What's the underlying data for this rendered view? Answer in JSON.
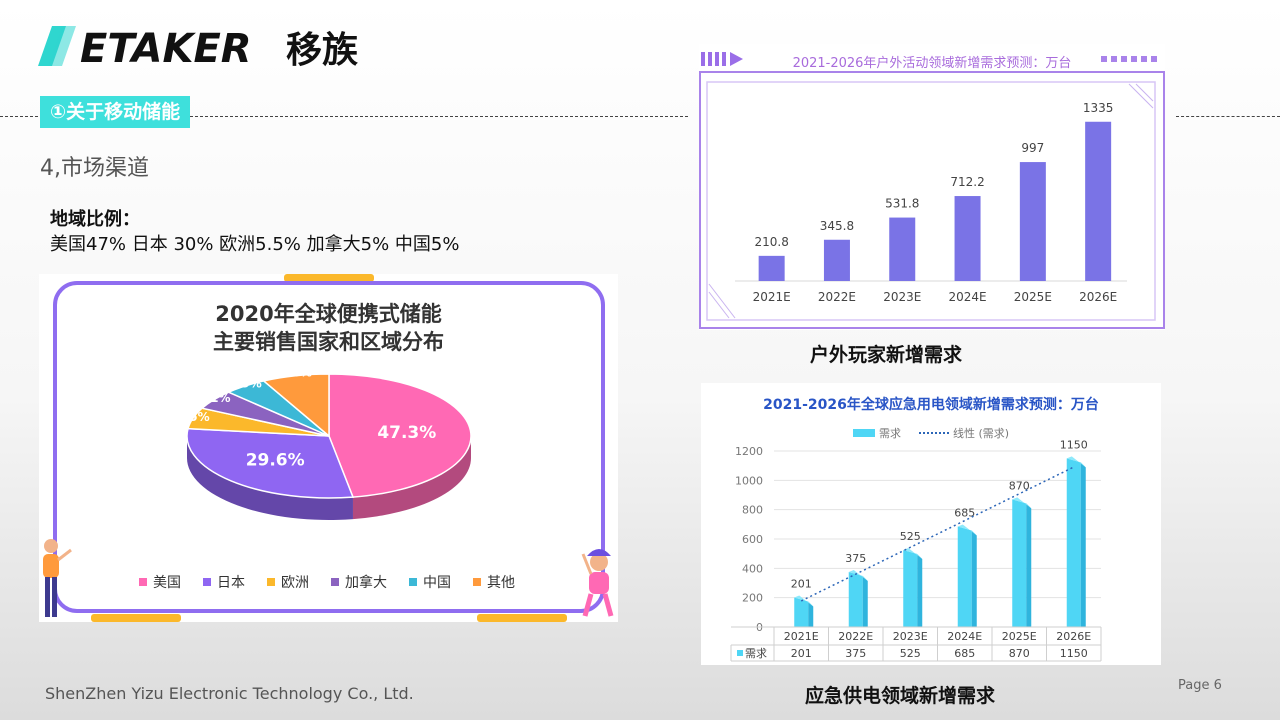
{
  "brand": {
    "name": "ETAKER",
    "cn_name": "移族",
    "color": "#111111",
    "accent": "#3ee0dc"
  },
  "section": {
    "tag": "①关于移动储能",
    "heading": "4,市场渠道"
  },
  "region": {
    "title": "地域比例：",
    "values": "美国47% 日本 30% 欧洲5.5% 加拿大5% 中国5%"
  },
  "pie_chart": {
    "title_line1": "2020年全球便携式储能",
    "title_line2": "主要销售国家和区域分布",
    "card_border_color": "#8f6df0"
  },
  "outdoor_chart": {
    "title": "2021-2026年户外活动领域新增需求预测：万台",
    "caption": "户外玩家新增需求",
    "bar_color": "#7a73e6"
  },
  "emergency_chart": {
    "title": "2021-2026年全球应急用电领域新增需求预测：万台",
    "legend_bar": "需求",
    "legend_line": "线性 (需求)",
    "table_row_label": "需求",
    "caption": "应急供电领域新增需求",
    "bar_color": "#4fd6f5"
  },
  "footer": {
    "company": "ShenZhen Yizu Electronic Technology Co., Ltd.",
    "page": "Page  6"
  },
  "chart_data": [
    {
      "type": "pie",
      "title": "2020年全球便携式储能 主要销售国家和区域分布",
      "labels": [
        "美国",
        "日本",
        "欧洲",
        "加拿大",
        "中国",
        "其他"
      ],
      "values": [
        47.3,
        29.6,
        5.5,
        5.1,
        4.9,
        7.6
      ],
      "value_labels": [
        "47.3%",
        "29.6%",
        "5.5%",
        "5.1%",
        "4.9%",
        "7.6%"
      ],
      "colors": [
        "#ff69b4",
        "#8f66f2",
        "#fbb82b",
        "#8b63c0",
        "#3cb8d6",
        "#ff9a3c"
      ],
      "legend": "bottom"
    },
    {
      "type": "bar",
      "title": "2021-2026年户外活动领域新增需求预测：万台",
      "categories": [
        "2021E",
        "2022E",
        "2023E",
        "2024E",
        "2025E",
        "2026E"
      ],
      "values": [
        210.8,
        345.8,
        531.8,
        712.2,
        997,
        1335
      ],
      "value_labels": [
        "210.8",
        "345.8",
        "531.8",
        "712.2",
        "997",
        "1335"
      ],
      "ylim": [
        0,
        1400
      ],
      "grid": false
    },
    {
      "type": "bar",
      "title": "2021-2026年全球应急用电领域新增需求预测：万台",
      "categories": [
        "2021E",
        "2022E",
        "2023E",
        "2024E",
        "2025E",
        "2026E"
      ],
      "series": [
        {
          "name": "需求",
          "values": [
            201,
            375,
            525,
            685,
            870,
            1150
          ]
        }
      ],
      "value_labels": [
        "201",
        "375",
        "525",
        "685",
        "870",
        "1150"
      ],
      "trendline": "线性 (需求)",
      "yticks": [
        "0",
        "200",
        "400",
        "600",
        "800",
        "1000",
        "1200"
      ],
      "ylim": [
        0,
        1200
      ],
      "grid": true,
      "data_table": true
    }
  ]
}
